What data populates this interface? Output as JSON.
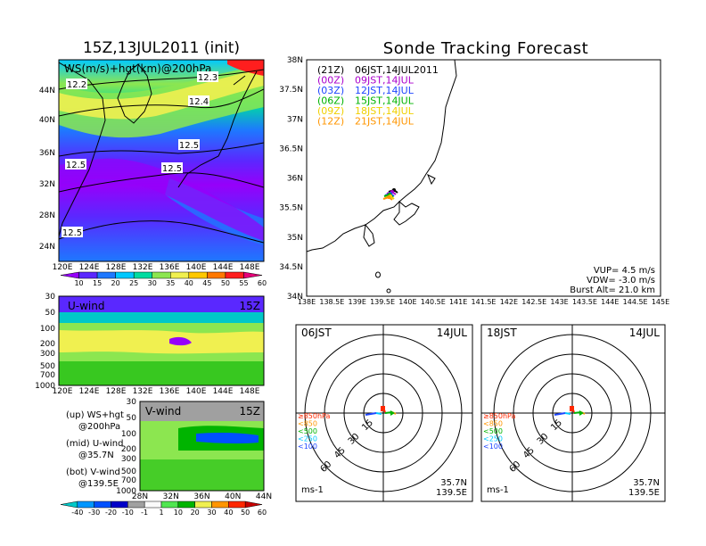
{
  "left_title": "15Z,13JUL2011 (init)",
  "right_title": "Sonde Tracking Forecast",
  "colors": {
    "ws_scale": [
      "#9600fa",
      "#5a28ff",
      "#1e78ff",
      "#00c8ff",
      "#00dca0",
      "#8ce650",
      "#f0f050",
      "#ffc800",
      "#ff7800",
      "#ff1e1e",
      "#e60078"
    ],
    "uv_scale": [
      "#00c8c8",
      "#0096ff",
      "#0050ff",
      "#0000c8",
      "#a0a0a0",
      "#fafafa",
      "#50e650",
      "#00b400",
      "#f0f050",
      "#ff9600",
      "#ff2800",
      "#c80000"
    ],
    "times": [
      "#000000",
      "#aa00cc",
      "#1e46ff",
      "#00b400",
      "#f0d000",
      "#ff9600"
    ]
  },
  "top_map": {
    "label": "WS(m/s)+hgt(km)@200hPa",
    "contour_labels": [
      "12.2",
      "12.3",
      "12.4",
      "12.5",
      "12.5",
      "12.5",
      "12.5"
    ],
    "lat_labels": [
      "44N",
      "40N",
      "36N",
      "32N",
      "28N",
      "24N"
    ],
    "lon_labels": [
      "120E",
      "124E",
      "128E",
      "132E",
      "136E",
      "140E",
      "144E",
      "148E"
    ],
    "colorbar_labels": [
      "10",
      "15",
      "20",
      "25",
      "30",
      "35",
      "40",
      "45",
      "50",
      "55",
      "60"
    ]
  },
  "u_panel": {
    "label": "U-wind",
    "time": "15Z",
    "p_labels": [
      "30",
      "50",
      "100",
      "200",
      "300",
      "500",
      "700",
      "1000"
    ],
    "lon_labels": [
      "120E",
      "124E",
      "128E",
      "132E",
      "136E",
      "140E",
      "144E",
      "148E"
    ]
  },
  "v_panel": {
    "label": "V-wind",
    "time": "15Z",
    "p_labels": [
      "30",
      "50",
      "100",
      "200",
      "300",
      "500",
      "700",
      "1000"
    ],
    "lat_labels": [
      "28N",
      "32N",
      "36N",
      "40N",
      "44N"
    ],
    "colorbar_labels": [
      "-40",
      "-30",
      "-20",
      "-10",
      "-1",
      "1",
      "10",
      "20",
      "30",
      "40",
      "50",
      "60"
    ]
  },
  "legend": {
    "up": [
      "(up) WS+hgt",
      "@200hPa"
    ],
    "mid": [
      "(mid) U-wind",
      "@35.7N"
    ],
    "bot": [
      "(bot) V-wind",
      "@139.5E"
    ]
  },
  "track_map": {
    "times": [
      {
        "utc": "(21Z)",
        "jst": "06JST,14JUL2011"
      },
      {
        "utc": "(00Z)",
        "jst": "09JST,14JUL"
      },
      {
        "utc": "(03Z)",
        "jst": "12JST,14JUL"
      },
      {
        "utc": "(06Z)",
        "jst": "15JST,14JUL"
      },
      {
        "utc": "(09Z)",
        "jst": "18JST,14JUL"
      },
      {
        "utc": "(12Z)",
        "jst": "21JST,14JUL"
      }
    ],
    "lat_labels": [
      "38N",
      "37.5N",
      "37N",
      "36.5N",
      "36N",
      "35.5N",
      "35N",
      "34.5N",
      "34N"
    ],
    "lon_labels": [
      "138E",
      "138.5E",
      "139E",
      "139.5E",
      "140E",
      "140.5E",
      "141E",
      "141.5E",
      "142E",
      "142.5E",
      "143E",
      "143.5E",
      "144E",
      "144.5E",
      "145E"
    ],
    "vup": "VUP= 4.5 m/s",
    "vdw": "VDW= -3.0 m/s",
    "burst": "Burst Alt= 21.0 km"
  },
  "hodographs": [
    {
      "time": "06JST",
      "date": "14JUL",
      "rings": [
        "15",
        "30",
        "45",
        "60"
      ],
      "levels": [
        "≥850hPa",
        "<850",
        "<500",
        "<250",
        "<100"
      ],
      "lat": "35.7N",
      "lon": "139.5E",
      "unit": "ms-1"
    },
    {
      "time": "18JST",
      "date": "14JUL",
      "rings": [
        "15",
        "30",
        "45",
        "60"
      ],
      "levels": [
        "≥850hPa",
        "<850",
        "<500",
        "<250",
        "<100"
      ],
      "lat": "35.7N",
      "lon": "139.5E",
      "unit": "ms-1"
    }
  ]
}
